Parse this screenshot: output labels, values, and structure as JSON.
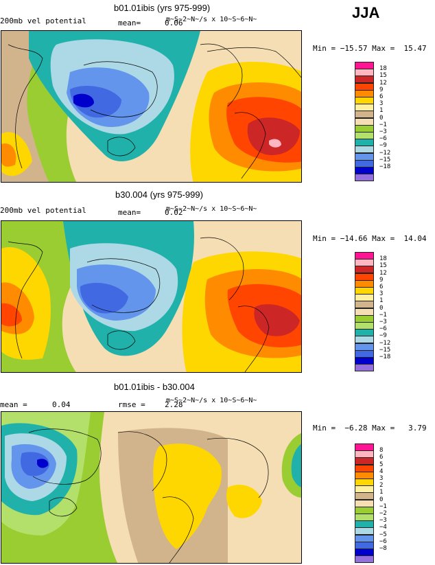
{
  "season": "JJA",
  "panels": [
    {
      "title": "b01.01ibis (yrs 975-999)",
      "variable": "200mb vel potential",
      "mean_label": "mean=",
      "mean_value": "0.06",
      "units": "m~S~2~N~/s x 10~S~6~N~",
      "stats": "Min = −15.57 Max =  15.47",
      "legend_labels": [
        "18",
        "15",
        "12",
        "9",
        "6",
        "3",
        "1",
        "0",
        "−1",
        "−3",
        "−6",
        "−9",
        "−12",
        "−15",
        "−18"
      ]
    },
    {
      "title": "b30.004 (yrs 975-999)",
      "variable": "200mb vel potential",
      "mean_label": "mean=",
      "mean_value": "0.02",
      "units": "m~S~2~N~/s x 10~S~6~N~",
      "stats": "Min = −14.66 Max =  14.04",
      "legend_labels": [
        "18",
        "15",
        "12",
        "9",
        "6",
        "3",
        "1",
        "0",
        "−1",
        "−3",
        "−6",
        "−9",
        "−12",
        "−15",
        "−18"
      ]
    },
    {
      "title": "b01.01ibis - b30.004",
      "mean_label": "mean =",
      "mean_value": "0.04",
      "rmse_label": "rmse =",
      "rmse_value": "2.28",
      "units": "m~S~2~N~/s x 10~S~6~N~",
      "stats": "Min =  −6.28 Max =   3.79",
      "legend_labels": [
        "8",
        "6",
        "5",
        "4",
        "3",
        "2",
        "1",
        "0",
        "−1",
        "−2",
        "−3",
        "−4",
        "−5",
        "−6",
        "−8"
      ]
    }
  ],
  "colors": {
    "legend_scale": [
      "#ff1493",
      "#ffb6c1",
      "#cd2626",
      "#ff4500",
      "#ff8c00",
      "#ffd700",
      "#fff0a0",
      "#d2b48c",
      "#f5deb3",
      "#9acd32",
      "#b3e06a",
      "#20b2aa",
      "#add8e6",
      "#6495ed",
      "#4169e1",
      "#0000cd",
      "#9370db"
    ]
  }
}
